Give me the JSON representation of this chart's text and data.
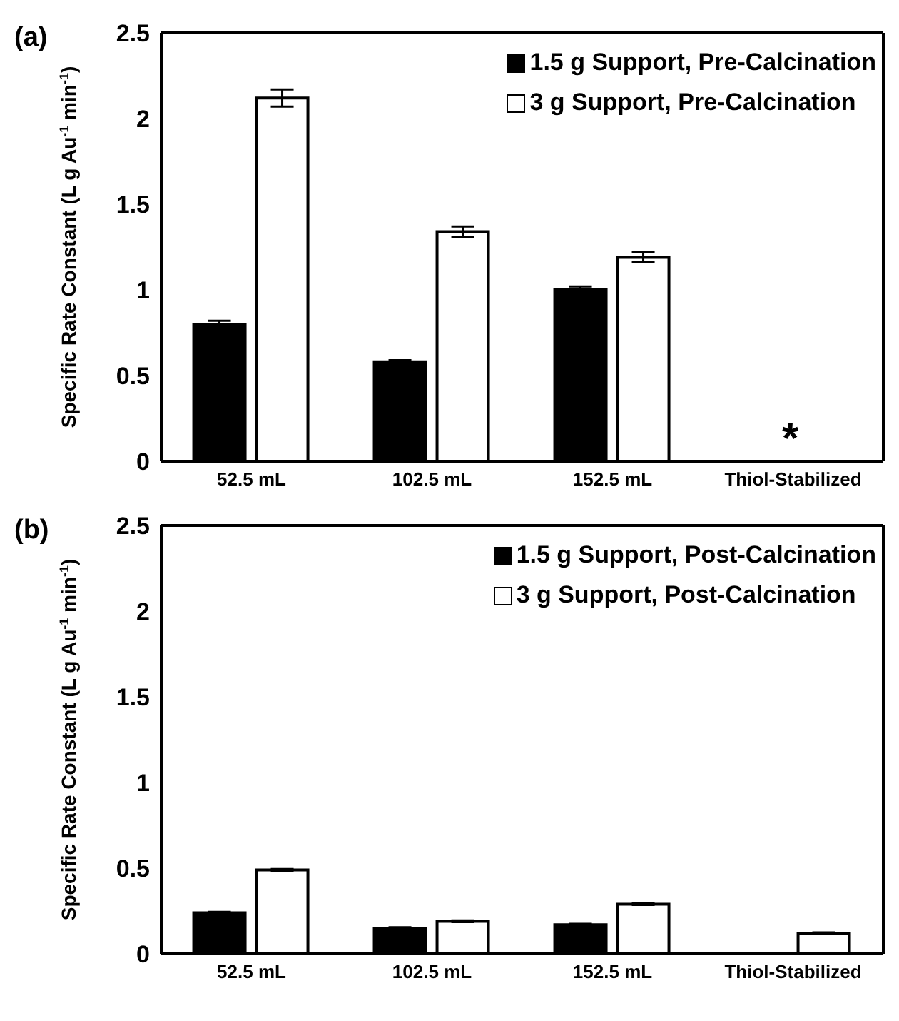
{
  "chart_data": [
    {
      "type": "bar",
      "title": "(a)",
      "ylabel": "Specific Rate Constant (L g Au$^{-1}$ min$^{-1}$)",
      "categories": [
        "52.5 mL",
        "102.5 mL",
        "152.5 mL",
        "Thiol-Stabilized"
      ],
      "series": [
        {
          "name": "1.5 g Support, Pre-Calcination",
          "color": "#000000",
          "values": [
            0.8,
            0.58,
            1.0,
            null
          ],
          "errors": [
            0.02,
            0.01,
            0.02,
            null
          ]
        },
        {
          "name": "3 g Support, Pre-Calcination",
          "color": "#ffffff",
          "values": [
            2.12,
            1.34,
            1.19,
            null
          ],
          "errors": [
            0.05,
            0.03,
            0.03,
            null
          ]
        }
      ],
      "ylim": [
        0,
        2.5
      ],
      "yticks": [
        0,
        0.5,
        1,
        1.5,
        2,
        2.5
      ],
      "grid": false,
      "legend": "top right",
      "annotations": [
        "*"
      ]
    },
    {
      "type": "bar",
      "title": "(b)",
      "ylabel": "Specific Rate Constant (L g Au$^{-1}$ min$^{-1}$)",
      "categories": [
        "52.5 mL",
        "102.5 mL",
        "152.5 mL",
        "Thiol-Stabilized"
      ],
      "series": [
        {
          "name": "1.5 g Support, Post-Calcination",
          "color": "#000000",
          "values": [
            0.24,
            0.15,
            0.17,
            null
          ],
          "errors": [
            0.005,
            0.005,
            0.005,
            null
          ]
        },
        {
          "name": "3 g Support, Post-Calcination",
          "color": "#ffffff",
          "values": [
            0.49,
            0.19,
            0.29,
            0.12
          ],
          "errors": [
            0.005,
            0.005,
            0.005,
            0.005
          ]
        }
      ],
      "ylim": [
        0,
        2.5
      ],
      "yticks": [
        0,
        0.5,
        1,
        1.5,
        2,
        2.5
      ],
      "grid": false,
      "legend": "top right"
    }
  ]
}
